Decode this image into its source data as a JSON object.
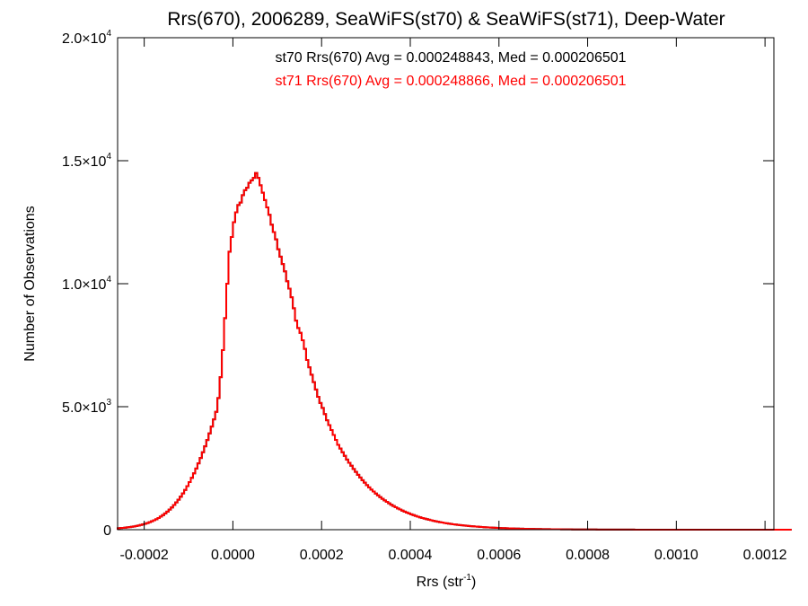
{
  "chart_data": {
    "type": "histogram",
    "title": "Rrs(670), 2006289, SeaWiFS(st70) & SeaWiFS(st71), Deep-Water",
    "xlabel": "Rrs (str",
    "xlabel_sup": "-1",
    "xlabel_end": ")",
    "ylabel": "Number of Observations",
    "xlim": [
      -0.00026,
      0.00122
    ],
    "ylim": [
      0,
      20000
    ],
    "x_ticks": [
      {
        "value": -0.0002,
        "label": "-0.0002"
      },
      {
        "value": 0.0,
        "label": "0.0000"
      },
      {
        "value": 0.0002,
        "label": "0.0002"
      },
      {
        "value": 0.0004,
        "label": "0.0004"
      },
      {
        "value": 0.0006,
        "label": "0.0006"
      },
      {
        "value": 0.0008,
        "label": "0.0008"
      },
      {
        "value": 0.001,
        "label": "0.0010"
      },
      {
        "value": 0.0012,
        "label": "0.0012"
      }
    ],
    "y_ticks": [
      {
        "value": 0,
        "mant": "0",
        "exp": ""
      },
      {
        "value": 5000,
        "mant": "5.0×10",
        "exp": "3"
      },
      {
        "value": 10000,
        "mant": "1.0×10",
        "exp": "4"
      },
      {
        "value": 15000,
        "mant": "1.5×10",
        "exp": "4"
      },
      {
        "value": 20000,
        "mant": "2.0×10",
        "exp": "4"
      }
    ],
    "annotations": [
      {
        "text": "st70 Rrs(670) Avg = 0.000248843, Med = 0.000206501",
        "color": "#000000"
      },
      {
        "text": "st71 Rrs(670) Avg = 0.000248866, Med = 0.000206501",
        "color": "#ff0000"
      }
    ],
    "series": [
      {
        "name": "st70",
        "color": "#000000",
        "bin_start": -0.00026,
        "bin_width": 5e-06,
        "values": [
          60,
          67,
          75,
          84,
          95,
          106,
          119,
          134,
          151,
          170,
          192,
          215,
          242,
          271,
          304,
          341,
          381,
          426,
          476,
          532,
          594,
          662,
          736,
          817,
          905,
          1002,
          1107,
          1220,
          1343,
          1475,
          1617,
          1770,
          1933,
          2107,
          2292,
          2488,
          2696,
          2916,
          3147,
          3390,
          3645,
          3912,
          4192,
          4484,
          4790,
          5350,
          6200,
          7300,
          8600,
          10000,
          11300,
          11900,
          12500,
          12900,
          13200,
          13300,
          13600,
          13800,
          13900,
          14100,
          14200,
          14300,
          14500,
          14300,
          14000,
          13700,
          13400,
          13100,
          12800,
          12400,
          12100,
          11800,
          11400,
          11100,
          10800,
          10500,
          10100,
          9800,
          9450,
          9000,
          8500,
          8200,
          8000,
          7700,
          7350,
          6900,
          6600,
          6300,
          6000,
          5700,
          5400,
          5150,
          4950,
          4700,
          4450,
          4250,
          4050,
          3850,
          3650,
          3450,
          3300,
          3150,
          3000,
          2850,
          2720,
          2600,
          2470,
          2350,
          2230,
          2120,
          2010,
          1910,
          1810,
          1720,
          1630,
          1550,
          1470,
          1395,
          1325,
          1255,
          1190,
          1130,
          1070,
          1015,
          962,
          912,
          864,
          819,
          776,
          735,
          697,
          660,
          625,
          592,
          561,
          531,
          503,
          476,
          451,
          427,
          404,
          383,
          362,
          343,
          325,
          307,
          291,
          275,
          261,
          247,
          233,
          221,
          209,
          198,
          187,
          177,
          168,
          159,
          150,
          142,
          135,
          128,
          121,
          114,
          108,
          102,
          97,
          92,
          87,
          82,
          78,
          74,
          70,
          66,
          62,
          59,
          56,
          53,
          50,
          47,
          45,
          42,
          40,
          38,
          36,
          34,
          32,
          30,
          29,
          27,
          26,
          24,
          23,
          22,
          21,
          20,
          19,
          18,
          17,
          16,
          15,
          14,
          13,
          13,
          12,
          11,
          11,
          10,
          10,
          9,
          9,
          8,
          8,
          7,
          7,
          7,
          6,
          6,
          6,
          5,
          5,
          5,
          5,
          4,
          4,
          4,
          4,
          3,
          3,
          3,
          3,
          3,
          3,
          2,
          2,
          2,
          2,
          2,
          2,
          2,
          2,
          2,
          2,
          1,
          1,
          1,
          1,
          1,
          1,
          1,
          1,
          1,
          1,
          1,
          1,
          1,
          1,
          1,
          1,
          1,
          1,
          1,
          1,
          1,
          1,
          1,
          1,
          1,
          1,
          1,
          1,
          1,
          1,
          1,
          1,
          1,
          1,
          1,
          1,
          1,
          1,
          1,
          1,
          1,
          1,
          1,
          1,
          1,
          1,
          1,
          1,
          1,
          1,
          1,
          1,
          1,
          1,
          1,
          1,
          1,
          1,
          1,
          1,
          1
        ]
      },
      {
        "name": "st71",
        "color": "#ff0000",
        "bin_start": -0.00026,
        "bin_width": 5e-06,
        "values": [
          60,
          67,
          75,
          84,
          95,
          106,
          119,
          134,
          151,
          170,
          192,
          215,
          242,
          271,
          304,
          341,
          381,
          426,
          476,
          532,
          594,
          662,
          736,
          817,
          905,
          1002,
          1107,
          1220,
          1343,
          1475,
          1617,
          1770,
          1933,
          2107,
          2292,
          2488,
          2696,
          2916,
          3147,
          3390,
          3645,
          3912,
          4192,
          4484,
          4790,
          5350,
          6200,
          7300,
          8600,
          10000,
          11300,
          11900,
          12500,
          12900,
          13200,
          13300,
          13600,
          13800,
          13900,
          14100,
          14200,
          14300,
          14500,
          14300,
          14000,
          13700,
          13400,
          13100,
          12800,
          12400,
          12100,
          11800,
          11400,
          11100,
          10800,
          10500,
          10100,
          9800,
          9450,
          9000,
          8500,
          8200,
          8000,
          7700,
          7350,
          6900,
          6600,
          6300,
          6000,
          5700,
          5400,
          5150,
          4950,
          4700,
          4450,
          4250,
          4050,
          3850,
          3650,
          3450,
          3300,
          3150,
          3000,
          2850,
          2720,
          2600,
          2470,
          2350,
          2230,
          2120,
          2010,
          1910,
          1810,
          1720,
          1630,
          1550,
          1470,
          1395,
          1325,
          1255,
          1190,
          1130,
          1070,
          1015,
          962,
          912,
          864,
          819,
          776,
          735,
          697,
          660,
          625,
          592,
          561,
          531,
          503,
          476,
          451,
          427,
          404,
          383,
          362,
          343,
          325,
          307,
          291,
          275,
          261,
          247,
          233,
          221,
          209,
          198,
          187,
          177,
          168,
          159,
          150,
          142,
          135,
          128,
          121,
          114,
          108,
          102,
          97,
          92,
          87,
          82,
          78,
          74,
          70,
          66,
          62,
          59,
          56,
          53,
          50,
          47,
          45,
          42,
          40,
          38,
          36,
          34,
          32,
          30,
          29,
          27,
          26,
          24,
          23,
          22,
          21,
          20,
          19,
          18,
          17,
          16,
          15,
          14,
          13,
          13,
          12,
          11,
          11,
          10,
          10,
          9,
          9,
          8,
          8,
          7,
          7,
          7,
          6,
          6,
          6,
          5,
          5,
          5,
          5,
          4,
          4,
          4,
          4,
          3,
          3,
          3,
          3,
          3,
          3,
          2,
          2,
          2,
          2,
          2,
          2,
          2,
          2,
          2,
          2,
          1,
          1,
          1,
          1,
          1,
          1,
          1,
          1,
          1,
          1,
          1,
          1,
          1,
          1,
          1,
          1,
          1,
          1,
          1,
          1,
          1,
          1,
          1,
          1,
          1,
          1,
          1,
          1,
          1,
          1,
          1,
          1,
          1,
          1,
          1,
          1,
          1,
          1,
          1,
          1,
          1,
          1,
          1,
          1,
          1,
          1,
          1,
          1,
          1,
          1,
          1,
          1,
          1,
          1,
          1,
          1,
          1,
          1,
          1,
          1,
          1
        ]
      }
    ]
  }
}
